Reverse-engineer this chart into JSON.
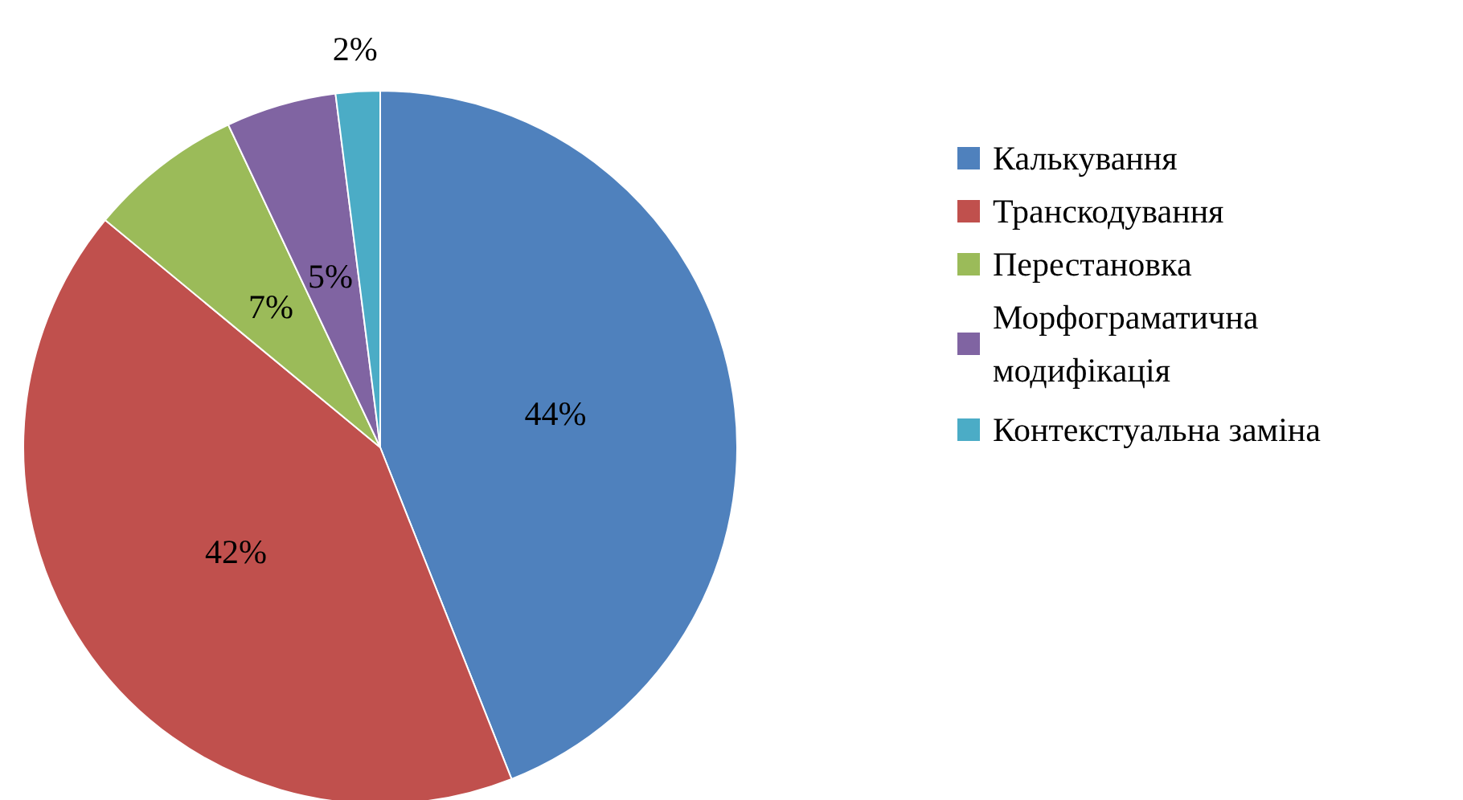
{
  "chart_data": {
    "type": "pie",
    "categories": [
      "Калькування",
      "Транскодування",
      "Перестановка",
      "Морфограматична модифікація",
      "Контекстуальна заміна"
    ],
    "values": [
      44,
      42,
      7,
      5,
      2
    ],
    "colors": [
      "#4f81bd",
      "#c0504d",
      "#9bbb59",
      "#8064a2",
      "#4bacc6"
    ],
    "value_labels": [
      "44%",
      "42%",
      "7%",
      "5%",
      "2%"
    ],
    "legend": "right"
  }
}
